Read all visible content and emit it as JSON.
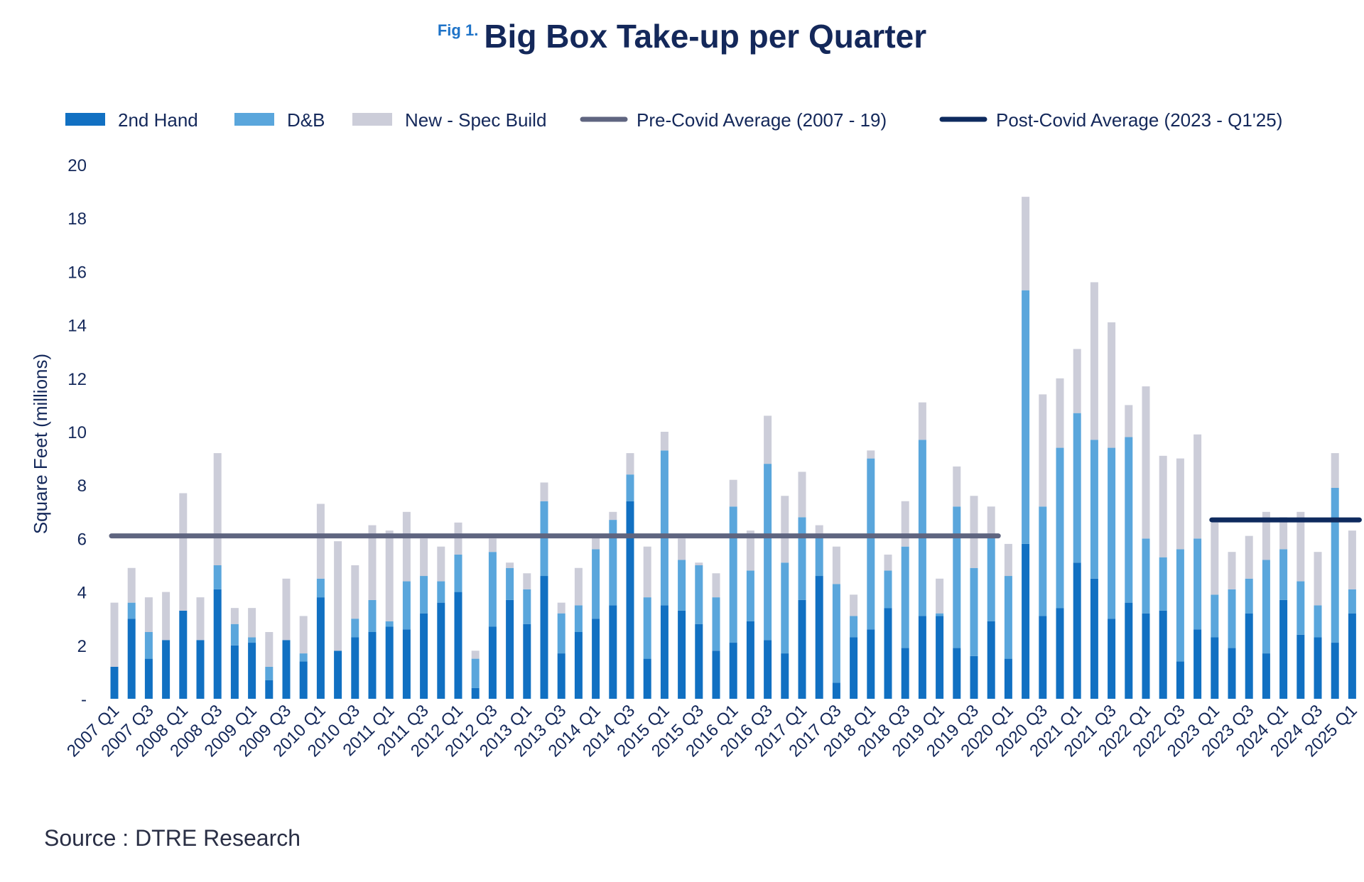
{
  "figure": {
    "label": "Fig 1.",
    "source": "Source : DTRE Research"
  },
  "colors": {
    "second_hand": "#1170c2",
    "db": "#5aa6dc",
    "new_spec": "#cccdd9",
    "pre_covid": "#5f6580",
    "post_covid": "#0e2a5e",
    "text": "#14285a"
  },
  "chart_data": {
    "type": "bar",
    "stacked": true,
    "title": "Big Box Take-up per Quarter",
    "xlabel": "",
    "ylabel": "Square Feet (millions)",
    "ylim": [
      0,
      20
    ],
    "yticks": [
      0,
      2,
      4,
      6,
      8,
      10,
      12,
      14,
      16,
      18,
      20
    ],
    "ytick_labels": [
      "-",
      "2",
      "4",
      "6",
      "8",
      "10",
      "12",
      "14",
      "16",
      "18",
      "20"
    ],
    "legend_position": "top",
    "xtick_labels": [
      "2007 Q1",
      "2007 Q3",
      "2008 Q1",
      "2008 Q3",
      "2009 Q1",
      "2009 Q3",
      "2010 Q1",
      "2010 Q3",
      "2011 Q1",
      "2011 Q3",
      "2012 Q1",
      "2012 Q3",
      "2013 Q1",
      "2013 Q3",
      "2014 Q1",
      "2014 Q3",
      "2015 Q1",
      "2015 Q3",
      "2016 Q1",
      "2016 Q3",
      "2017 Q1",
      "2017 Q3",
      "2018 Q1",
      "2018 Q3",
      "2019 Q1",
      "2019 Q3",
      "2020 Q1",
      "2020 Q3",
      "2021 Q1",
      "2021 Q3",
      "2022 Q1",
      "2022 Q3",
      "2023 Q1",
      "2023 Q3",
      "2024 Q1",
      "2024 Q3",
      "2025 Q1"
    ],
    "categories": [
      "2007 Q1",
      "2007 Q2",
      "2007 Q3",
      "2007 Q4",
      "2008 Q1",
      "2008 Q2",
      "2008 Q3",
      "2008 Q4",
      "2009 Q1",
      "2009 Q2",
      "2009 Q3",
      "2009 Q4",
      "2010 Q1",
      "2010 Q2",
      "2010 Q3",
      "2010 Q4",
      "2011 Q1",
      "2011 Q2",
      "2011 Q3",
      "2011 Q4",
      "2012 Q1",
      "2012 Q2",
      "2012 Q3",
      "2012 Q4",
      "2013 Q1",
      "2013 Q2",
      "2013 Q3",
      "2013 Q4",
      "2014 Q1",
      "2014 Q2",
      "2014 Q3",
      "2014 Q4",
      "2015 Q1",
      "2015 Q2",
      "2015 Q3",
      "2015 Q4",
      "2016 Q1",
      "2016 Q2",
      "2016 Q3",
      "2016 Q4",
      "2017 Q1",
      "2017 Q2",
      "2017 Q3",
      "2017 Q4",
      "2018 Q1",
      "2018 Q2",
      "2018 Q3",
      "2018 Q4",
      "2019 Q1",
      "2019 Q2",
      "2019 Q3",
      "2019 Q4",
      "2020 Q1",
      "2020 Q2",
      "2020 Q3",
      "2020 Q4",
      "2021 Q1",
      "2021 Q2",
      "2021 Q3",
      "2021 Q4",
      "2022 Q1",
      "2022 Q2",
      "2022 Q3",
      "2022 Q4",
      "2023 Q1",
      "2023 Q2",
      "2023 Q3",
      "2023 Q4",
      "2024 Q1",
      "2024 Q2",
      "2024 Q3",
      "2024 Q4",
      "2025 Q1"
    ],
    "series": [
      {
        "name": "2nd Hand",
        "values": [
          1.2,
          3.0,
          1.5,
          2.2,
          3.3,
          2.2,
          4.1,
          2.0,
          2.1,
          0.7,
          2.2,
          1.4,
          3.8,
          1.8,
          2.3,
          2.5,
          2.7,
          2.6,
          3.2,
          3.6,
          4.0,
          0.4,
          2.7,
          3.7,
          2.8,
          4.6,
          1.7,
          2.5,
          3.0,
          3.5,
          7.4,
          1.5,
          3.5,
          3.3,
          2.8,
          1.8,
          2.1,
          2.9,
          2.2,
          1.7,
          3.7,
          4.6,
          0.6,
          2.3,
          2.6,
          3.4,
          1.9,
          3.1,
          3.1,
          1.9,
          1.6,
          2.9,
          1.5,
          5.8,
          3.1,
          3.4,
          5.1,
          4.5,
          3.0,
          3.6,
          3.2,
          3.3,
          1.4,
          2.6,
          2.3,
          1.9,
          3.2,
          1.7,
          3.7,
          2.4,
          2.3,
          2.1,
          3.2
        ]
      },
      {
        "name": "D&B",
        "values": [
          0.0,
          0.6,
          1.0,
          0.0,
          0.0,
          0.0,
          0.9,
          0.8,
          0.2,
          0.5,
          0.0,
          0.3,
          0.7,
          0.0,
          0.7,
          1.2,
          0.2,
          1.8,
          1.4,
          0.8,
          1.4,
          1.1,
          2.8,
          1.2,
          1.3,
          2.8,
          1.5,
          1.0,
          2.6,
          3.2,
          1.0,
          2.3,
          5.8,
          1.9,
          2.2,
          2.0,
          5.1,
          1.9,
          6.6,
          3.4,
          3.1,
          1.5,
          3.7,
          0.8,
          6.4,
          1.4,
          3.8,
          6.6,
          0.1,
          5.3,
          3.3,
          3.2,
          3.1,
          9.5,
          4.1,
          6.0,
          5.6,
          5.2,
          6.4,
          6.2,
          2.8,
          2.0,
          4.2,
          3.4,
          1.6,
          2.2,
          1.3,
          3.5,
          1.9,
          2.0,
          1.2,
          5.8,
          0.9
        ]
      },
      {
        "name": "New - Spec Build",
        "values": [
          2.4,
          1.3,
          1.3,
          1.8,
          4.4,
          1.6,
          4.2,
          0.6,
          1.1,
          1.3,
          2.3,
          1.4,
          2.8,
          4.1,
          2.0,
          2.8,
          3.4,
          2.6,
          1.4,
          1.3,
          1.2,
          0.3,
          0.5,
          0.2,
          0.6,
          0.7,
          0.4,
          1.4,
          0.5,
          0.3,
          0.8,
          1.9,
          0.7,
          0.8,
          0.1,
          0.9,
          1.0,
          1.5,
          1.8,
          2.5,
          1.7,
          0.4,
          1.4,
          0.8,
          0.3,
          0.6,
          1.7,
          1.4,
          1.3,
          1.5,
          2.7,
          1.1,
          1.2,
          3.5,
          4.2,
          2.6,
          2.4,
          5.9,
          4.7,
          1.2,
          5.7,
          3.8,
          3.4,
          3.9,
          2.7,
          1.4,
          1.6,
          1.8,
          1.2,
          2.6,
          2.0,
          1.3,
          2.2
        ]
      }
    ],
    "reference_lines": [
      {
        "name": "Pre-Covid Average (2007 - 19)",
        "value": 6.1,
        "from": "2007 Q1",
        "to": "2019 Q4"
      },
      {
        "name": "Post-Covid Average (2023 - Q1'25)",
        "value": 6.7,
        "from": "2023 Q1",
        "to": "2025 Q1"
      }
    ]
  }
}
